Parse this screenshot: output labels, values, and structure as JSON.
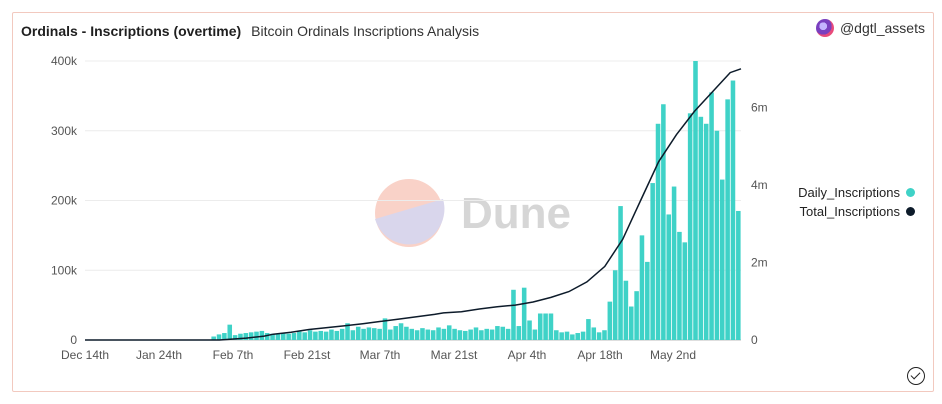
{
  "header": {
    "title": "Ordinals - Inscriptions (overtime)",
    "subtitle": "Bitcoin Ordinals Inscriptions Analysis",
    "user": "@dgtl_assets"
  },
  "watermark": "Dune",
  "colors": {
    "bar": "#3fd2c7",
    "line": "#0d1b2a"
  },
  "chart_data": {
    "type": "bar",
    "x_tick_labels": [
      "Dec 14th",
      "Jan 24th",
      "Feb 7th",
      "Feb 21st",
      "Mar 7th",
      "Mar 21st",
      "Apr 4th",
      "Apr 18th",
      "May 2nd"
    ],
    "y_left_ticks": [
      "0",
      "100k",
      "200k",
      "300k",
      "400k"
    ],
    "y_right_ticks": [
      "0",
      "2m",
      "4m",
      "6m"
    ],
    "ylim_left": [
      0,
      400000
    ],
    "ylim_right": [
      0,
      7200000
    ],
    "legend_position": "right",
    "series": [
      {
        "name": "Daily_Inscriptions",
        "axis": "left",
        "type": "bar",
        "values": [
          5000,
          8000,
          10000,
          22000,
          7000,
          9000,
          10000,
          11000,
          12000,
          13000,
          10000,
          9000,
          9000,
          10000,
          9000,
          10000,
          12000,
          11000,
          14000,
          12000,
          13000,
          12000,
          15000,
          13000,
          16000,
          24000,
          14000,
          19000,
          16000,
          18000,
          17000,
          16000,
          31000,
          15000,
          20000,
          24000,
          19000,
          16000,
          14000,
          17000,
          15000,
          14000,
          18000,
          16000,
          21000,
          16000,
          14000,
          13000,
          15000,
          18000,
          14000,
          16000,
          15000,
          20000,
          19000,
          16000,
          72000,
          20000,
          75000,
          28000,
          15000,
          38000,
          38000,
          38000,
          14000,
          11000,
          12000,
          8000,
          10000,
          12000,
          30000,
          18000,
          11000,
          14000,
          55000,
          100000,
          192000,
          85000,
          48000,
          70000,
          150000,
          112000,
          225000,
          310000,
          338000,
          180000,
          220000,
          155000,
          140000,
          325000,
          400000,
          320000,
          310000,
          355000,
          300000,
          230000,
          345000,
          372000,
          185000
        ]
      },
      {
        "name": "Total_Inscriptions",
        "axis": "right",
        "type": "line",
        "x": [
          0,
          20,
          35,
          52,
          75,
          90,
          100,
          105,
          115,
          125,
          135,
          145,
          155,
          165,
          175,
          185,
          195,
          200,
          210,
          220,
          230,
          240,
          250,
          260,
          270,
          280,
          290,
          300,
          310,
          320,
          330,
          340,
          350,
          360,
          366
        ],
        "values": [
          0,
          0,
          0,
          0,
          1000,
          50000,
          100000,
          150000,
          200000,
          270000,
          320000,
          370000,
          420000,
          480000,
          540000,
          600000,
          660000,
          700000,
          730000,
          800000,
          860000,
          900000,
          980000,
          1100000,
          1250000,
          1500000,
          1900000,
          2600000,
          3600000,
          4600000,
          5300000,
          5900000,
          6400000,
          6900000,
          7000000
        ]
      }
    ]
  }
}
